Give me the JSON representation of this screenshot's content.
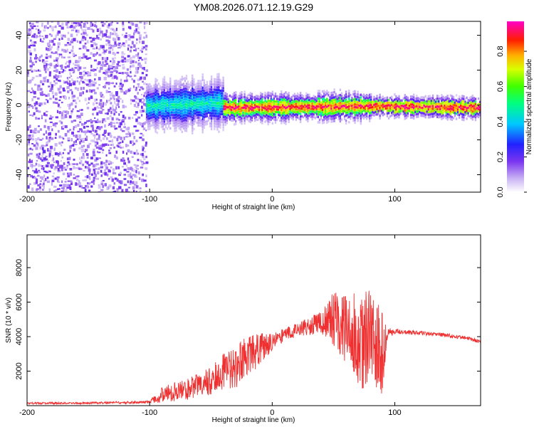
{
  "figure": {
    "title": "YM08.2026.071.12.19.G29"
  },
  "chart_data": [
    {
      "type": "heatmap",
      "name": "spectrogram",
      "title": "YM08.2026.071.12.19.G29",
      "xlabel": "Height of straight line (km)",
      "ylabel": "Frequency (Hz)",
      "xlim": [
        -200,
        170
      ],
      "ylim": [
        -50,
        48
      ],
      "xticks": [
        -200,
        -100,
        0,
        100
      ],
      "yticks": [
        -40,
        -20,
        0,
        20,
        40
      ],
      "colorbar": {
        "label": "Normalized spectral amplitude",
        "range": [
          0,
          0.97
        ],
        "ticks": [
          0.0,
          0.2,
          0.4,
          0.6,
          0.8
        ],
        "tick_labels": [
          "0.0",
          "0.2",
          "0.4",
          "0.6",
          "0.8"
        ]
      },
      "regions": [
        {
          "name": "noise",
          "x_range": [
            -200,
            -103
          ],
          "y_range": [
            -50,
            48
          ],
          "amplitude": [
            0.05,
            0.2
          ]
        },
        {
          "name": "signal-onset",
          "x_range": [
            -103,
            -40
          ],
          "center_hz": [
            0,
            2
          ],
          "half_width_hz": 8,
          "amplitude": [
            0.2,
            0.5
          ]
        },
        {
          "name": "signal-strong",
          "x_range": [
            -40,
            80
          ],
          "center_hz": [
            -1,
            0
          ],
          "half_width_hz": 4,
          "amplitude": [
            0.5,
            0.97
          ]
        },
        {
          "name": "signal-tail",
          "x_range": [
            80,
            170
          ],
          "center_hz": [
            0,
            -1
          ],
          "half_width_hz": 3,
          "amplitude": [
            0.6,
            0.97
          ]
        }
      ]
    },
    {
      "type": "line",
      "name": "snr",
      "xlabel": "Height of straight line (km)",
      "ylabel": "SNR (10 * v/v)",
      "xlim": [
        -200,
        170
      ],
      "ylim": [
        0,
        9900
      ],
      "xticks": [
        -200,
        -100,
        0,
        100
      ],
      "yticks": [
        2000,
        4000,
        6000,
        8000
      ],
      "color": "#f03030",
      "series": [
        {
          "name": "SNR",
          "x": [
            -200,
            -180,
            -160,
            -140,
            -120,
            -100,
            -92,
            -80,
            -70,
            -60,
            -50,
            -40,
            -30,
            -20,
            -10,
            0,
            10,
            20,
            30,
            40,
            50,
            60,
            70,
            80,
            90,
            95,
            100,
            120,
            140,
            160,
            170
          ],
          "base": [
            130,
            140,
            150,
            160,
            180,
            210,
            550,
            800,
            950,
            1200,
            1500,
            1900,
            2300,
            2800,
            3300,
            3700,
            4100,
            4400,
            4600,
            4800,
            5000,
            4500,
            3900,
            3600,
            3000,
            4200,
            4300,
            4200,
            4100,
            3900,
            3700
          ],
          "noise": [
            60,
            60,
            60,
            60,
            70,
            90,
            450,
            550,
            600,
            700,
            900,
            1100,
            1300,
            1200,
            900,
            500,
            400,
            400,
            500,
            700,
            1600,
            2200,
            2600,
            3200,
            2500,
            300,
            150,
            120,
            110,
            110,
            110
          ]
        }
      ]
    }
  ]
}
